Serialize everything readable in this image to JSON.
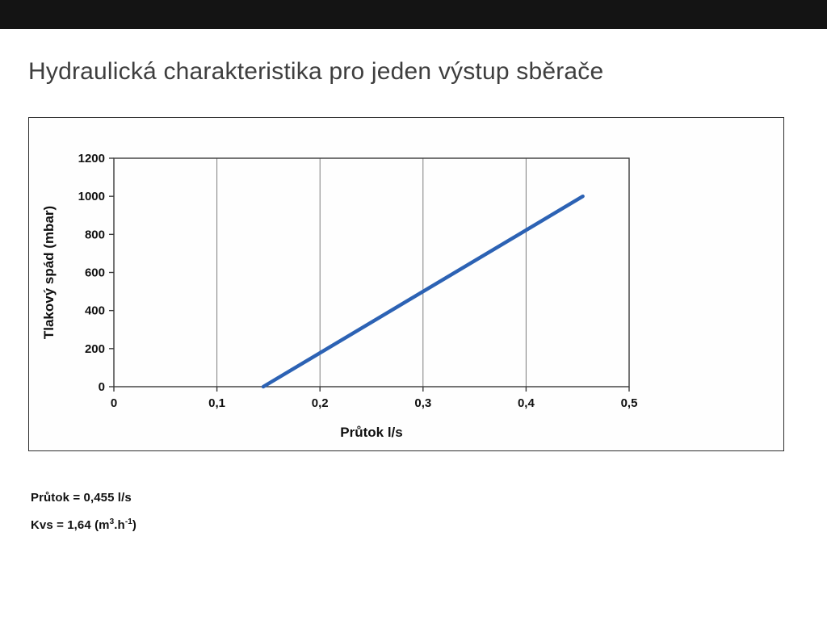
{
  "page": {
    "title": "Hydraulická charakteristika pro jeden výstup sběrače"
  },
  "chart_data": {
    "type": "line",
    "title": "",
    "xlabel": "Průtok l/s",
    "ylabel": "Tlakový spád (mbar)",
    "xlim": [
      0,
      0.5
    ],
    "ylim": [
      0,
      1200
    ],
    "x_ticks": [
      0,
      0.1,
      0.2,
      0.3,
      0.4,
      0.5
    ],
    "x_tick_labels": [
      "0",
      "0,1",
      "0,2",
      "0,3",
      "0,4",
      "0,5"
    ],
    "y_ticks": [
      0,
      200,
      400,
      600,
      800,
      1000,
      1200
    ],
    "y_tick_labels": [
      "0",
      "200",
      "400",
      "600",
      "800",
      "1000",
      "1200"
    ],
    "grid": "vertical-only",
    "legend": "none",
    "series": [
      {
        "name": "Tlakový spád",
        "color": "#2c62b4",
        "x": [
          0.145,
          0.455
        ],
        "y": [
          0,
          1000
        ]
      }
    ]
  },
  "annotations": {
    "flow": "Průtok = 0,455 l/s",
    "kvs_prefix": "Kvs = 1,64 (m",
    "kvs_sup_exp": "3",
    "kvs_mid": ".h",
    "kvs_sup_neg": "-1",
    "kvs_suffix": ")"
  }
}
